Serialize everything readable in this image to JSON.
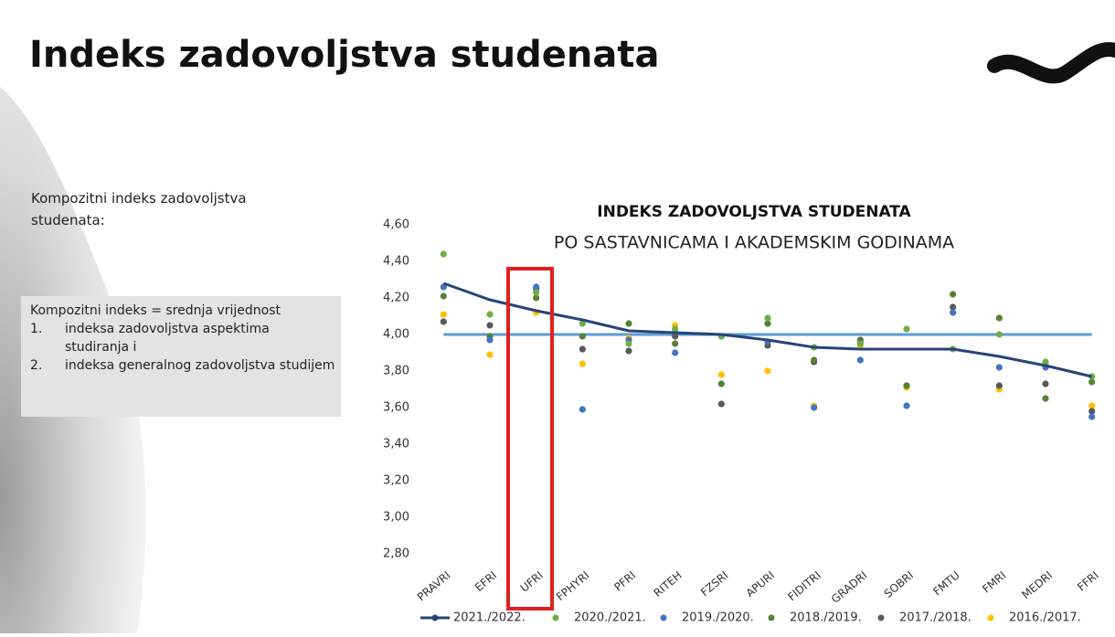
{
  "slide": {
    "title": "Indeks zadovoljstva studenata",
    "intro": "Kompozitni indeks zadovoljstva studenata:",
    "box": {
      "heading": "Kompozitni indeks = srednja vrijednost",
      "items": [
        {
          "number": "1.",
          "text": "indeksa zadovoljstva aspektima studiranja i"
        },
        {
          "number": "2.",
          "text": "indeksa generalnog zadovoljstva studijem"
        }
      ]
    }
  },
  "chart_data": {
    "type": "line",
    "title": "INDEKS ZADOVOLJSTVA STUDENATA",
    "subtitle": "PO SASTAVNICAMA I AKADEMSKIM GODINAMA",
    "categories": [
      "PRAVRI",
      "EFRI",
      "UFRI",
      "FPHYRI",
      "PFRI",
      "RITEH",
      "FZSRI",
      "APURI",
      "FIDITRI",
      "GRADRI",
      "SOBRI",
      "FMTU",
      "FMRI",
      "MEDRI",
      "FFRI"
    ],
    "ylim": [
      2.8,
      4.6
    ],
    "yticks": [
      {
        "value": 2.8,
        "label": "2,80"
      },
      {
        "value": 3.0,
        "label": "3,00"
      },
      {
        "value": 3.2,
        "label": "3,20"
      },
      {
        "value": 3.4,
        "label": "3,40"
      },
      {
        "value": 3.6,
        "label": "3,60"
      },
      {
        "value": 3.8,
        "label": "3,80"
      },
      {
        "value": 4.0,
        "label": "4,00"
      },
      {
        "value": 4.2,
        "label": "4,20"
      },
      {
        "value": 4.4,
        "label": "4,40"
      },
      {
        "value": 4.6,
        "label": "4,60"
      }
    ],
    "grid": false,
    "reference_line": {
      "value": 4.0,
      "color": "#5b9bd5"
    },
    "series": [
      {
        "name": "2021./2022.",
        "color": "#264478",
        "style": "line",
        "values": [
          4.28,
          4.19,
          4.13,
          4.08,
          4.02,
          4.01,
          4.0,
          3.97,
          3.93,
          3.92,
          3.92,
          3.92,
          3.88,
          3.83,
          3.77
        ]
      },
      {
        "name": "2020./2021.",
        "color": "#70ad47",
        "style": "points",
        "values": [
          4.44,
          4.11,
          4.23,
          4.06,
          3.95,
          4.03,
          3.99,
          4.09,
          3.93,
          3.95,
          4.03,
          3.92,
          4.0,
          3.85,
          3.77
        ]
      },
      {
        "name": "2019./2020.",
        "color": "#4472c4",
        "style": "points",
        "values": [
          4.26,
          3.97,
          4.26,
          3.59,
          3.97,
          3.9,
          3.99,
          3.96,
          3.6,
          3.86,
          3.61,
          4.12,
          3.82,
          3.82,
          3.55
        ]
      },
      {
        "name": "2018./2019.",
        "color": "#548235",
        "style": "points",
        "values": [
          4.21,
          3.99,
          4.2,
          3.99,
          4.06,
          3.95,
          3.73,
          4.06,
          3.86,
          3.96,
          3.72,
          4.22,
          4.09,
          3.65,
          3.74
        ]
      },
      {
        "name": "2017./2018.",
        "color": "#595959",
        "style": "points",
        "values": [
          4.07,
          4.05,
          4.25,
          3.92,
          3.91,
          3.99,
          3.62,
          3.94,
          3.85,
          3.97,
          3.72,
          4.15,
          3.72,
          3.73,
          3.58
        ]
      },
      {
        "name": "2016./2017.",
        "color": "#ffc000",
        "style": "points",
        "values": [
          4.11,
          3.89,
          4.12,
          3.84,
          3.98,
          4.05,
          3.78,
          3.8,
          3.61,
          3.94,
          3.71,
          4.12,
          3.7,
          3.84,
          3.61
        ]
      }
    ]
  }
}
